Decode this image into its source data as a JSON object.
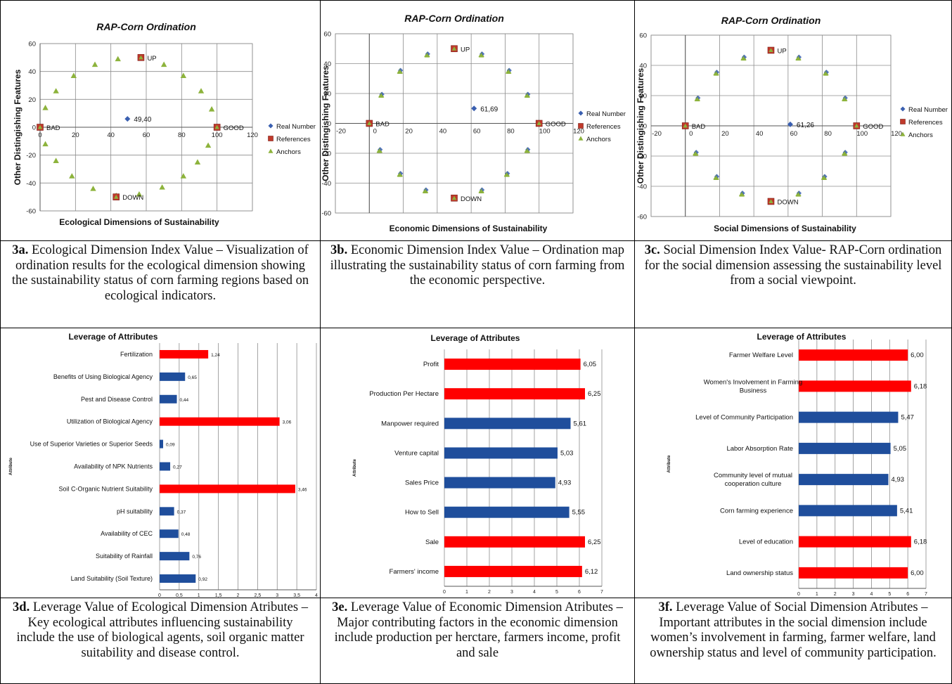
{
  "colors": {
    "real": "#3a5fb0",
    "references": "#c0392b",
    "anchors": "#8db33c",
    "bar_red": "#ff0000",
    "bar_blue": "#1f4e9c",
    "grid": "#8c8c8c"
  },
  "chart_data": [
    {
      "type": "scatter",
      "title": "RAP-Corn Ordination",
      "xlabel": "Ecological Dimensions of Sustainability",
      "ylabel": "Other Distingishing Features",
      "xlim": [
        0,
        120
      ],
      "ylim": [
        -60,
        60
      ],
      "x_ticks": [
        "0",
        "20",
        "40",
        "60",
        "80",
        "100",
        "120"
      ],
      "y_ticks": [
        "60",
        "40",
        "20",
        "0",
        "-20",
        "-40",
        "-60"
      ],
      "legend": [
        "Real Number",
        "References",
        "Anchors"
      ],
      "series": [
        {
          "name": "Real Number",
          "points": [
            {
              "x": 49.4,
              "y": 6,
              "label": "49,40"
            }
          ]
        },
        {
          "name": "References",
          "points": [
            {
              "x": 0,
              "y": 0,
              "label": "BAD"
            },
            {
              "x": 100,
              "y": 0,
              "label": "GOOD"
            },
            {
              "x": 57,
              "y": 50,
              "label": "UP"
            },
            {
              "x": 43,
              "y": -50,
              "label": "DOWN"
            }
          ]
        },
        {
          "name": "Anchors",
          "points": [
            {
              "x": 3,
              "y": 14
            },
            {
              "x": 9,
              "y": 26
            },
            {
              "x": 19,
              "y": 37
            },
            {
              "x": 31,
              "y": 45
            },
            {
              "x": 44,
              "y": 49
            },
            {
              "x": 57,
              "y": 50
            },
            {
              "x": 70,
              "y": 45
            },
            {
              "x": 81,
              "y": 37
            },
            {
              "x": 91,
              "y": 26
            },
            {
              "x": 97,
              "y": 13
            },
            {
              "x": 100,
              "y": 0
            },
            {
              "x": 95,
              "y": -13
            },
            {
              "x": 89,
              "y": -25
            },
            {
              "x": 81,
              "y": -35
            },
            {
              "x": 69,
              "y": -43
            },
            {
              "x": 56,
              "y": -48
            },
            {
              "x": 43,
              "y": -49
            },
            {
              "x": 30,
              "y": -44
            },
            {
              "x": 18,
              "y": -35
            },
            {
              "x": 9,
              "y": -24
            },
            {
              "x": 3,
              "y": -12
            },
            {
              "x": 0,
              "y": 0
            }
          ]
        }
      ]
    },
    {
      "type": "scatter",
      "title": "RAP-Corn Ordination",
      "xlabel": "Economic Dimensions of Sustainability",
      "ylabel": "Other Distingishing Features",
      "xlim": [
        -20,
        120
      ],
      "ylim": [
        -60,
        60
      ],
      "x_ticks": [
        "-20",
        "0",
        "20",
        "40",
        "60",
        "80",
        "100",
        "120"
      ],
      "y_ticks": [
        "60",
        "40",
        "20",
        "0",
        "-20",
        "-40",
        "-60"
      ],
      "legend": [
        "Real Number",
        "References",
        "Anchors"
      ],
      "series": [
        {
          "name": "Real Number",
          "points": [
            {
              "x": 61.69,
              "y": 10,
              "label": "61,69"
            }
          ]
        },
        {
          "name": "References",
          "points": [
            {
              "x": 0,
              "y": 0,
              "label": "BAD"
            },
            {
              "x": 100,
              "y": 0,
              "label": "GOOD"
            },
            {
              "x": 50,
              "y": 50,
              "label": "UP"
            },
            {
              "x": 50,
              "y": -50,
              "label": "DOWN"
            }
          ]
        },
        {
          "name": "Anchors",
          "points": [
            {
              "x": 7,
              "y": 19
            },
            {
              "x": 18,
              "y": 35
            },
            {
              "x": 34,
              "y": 46
            },
            {
              "x": 50,
              "y": 50
            },
            {
              "x": 66,
              "y": 46
            },
            {
              "x": 82,
              "y": 35
            },
            {
              "x": 93,
              "y": 19
            },
            {
              "x": 100,
              "y": 0
            },
            {
              "x": 93,
              "y": -18
            },
            {
              "x": 81,
              "y": -34
            },
            {
              "x": 66,
              "y": -45
            },
            {
              "x": 50,
              "y": -50
            },
            {
              "x": 33,
              "y": -45
            },
            {
              "x": 18,
              "y": -34
            },
            {
              "x": 6,
              "y": -18
            },
            {
              "x": 0,
              "y": 0
            }
          ]
        }
      ]
    },
    {
      "type": "scatter",
      "title": "RAP-Corn Ordination",
      "xlabel": "Social Dimensions of Sustainability",
      "ylabel": "Other Distingishing Features",
      "xlim": [
        -20,
        120
      ],
      "ylim": [
        -60,
        60
      ],
      "x_ticks": [
        "-20",
        "0",
        "20",
        "40",
        "60",
        "80",
        "100",
        "120"
      ],
      "y_ticks": [
        "60",
        "40",
        "20",
        "0",
        "-20",
        "-40",
        "-60"
      ],
      "legend": [
        "Real Number",
        "References",
        "Anchors"
      ],
      "series": [
        {
          "name": "Real Number",
          "points": [
            {
              "x": 61.26,
              "y": 1,
              "label": "61,26"
            }
          ]
        },
        {
          "name": "References",
          "points": [
            {
              "x": 0,
              "y": 0,
              "label": "BAD"
            },
            {
              "x": 100,
              "y": 0,
              "label": "GOOD"
            },
            {
              "x": 50,
              "y": 50,
              "label": "UP"
            },
            {
              "x": 50,
              "y": -50,
              "label": "DOWN"
            }
          ]
        },
        {
          "name": "Anchors",
          "points": [
            {
              "x": 7,
              "y": 18
            },
            {
              "x": 18,
              "y": 35
            },
            {
              "x": 34,
              "y": 45
            },
            {
              "x": 50,
              "y": 50
            },
            {
              "x": 66,
              "y": 45
            },
            {
              "x": 82,
              "y": 35
            },
            {
              "x": 93,
              "y": 18
            },
            {
              "x": 100,
              "y": 0
            },
            {
              "x": 93,
              "y": -18
            },
            {
              "x": 81,
              "y": -34
            },
            {
              "x": 66,
              "y": -45
            },
            {
              "x": 50,
              "y": -50
            },
            {
              "x": 33,
              "y": -45
            },
            {
              "x": 18,
              "y": -34
            },
            {
              "x": 6,
              "y": -18
            },
            {
              "x": 0,
              "y": 0
            }
          ]
        }
      ]
    },
    {
      "type": "bar",
      "orientation": "horizontal",
      "title": "Leverage of Attributes",
      "ylabel": "Attribute",
      "xlim": [
        0,
        4
      ],
      "x_ticks": [
        "0",
        "0,5",
        "1",
        "1,5",
        "2",
        "2,5",
        "3",
        "3,5",
        "4"
      ],
      "categories": [
        "Fertilization",
        "Benefits of Using Biological Agency",
        "Pest and Disease Control",
        "Utilization of Biological Agency",
        "Use of Superior Varieties or Superior Seeds",
        "Availability of NPK Nutrients",
        "Soil C-Organic Nutrient Suitability",
        "pH suitability",
        "Availability of CEC",
        "Suitability of Rainfall",
        "Land Suitability (Soil Texture)"
      ],
      "values": [
        1.24,
        0.65,
        0.44,
        3.06,
        0.09,
        0.27,
        3.46,
        0.37,
        0.48,
        0.76,
        0.92
      ],
      "value_labels": [
        "1,24",
        "0,65",
        "0,44",
        "3,06",
        "0,09",
        "0,27",
        "3,46",
        "0,37",
        "0,48",
        "0,76",
        "0,92"
      ],
      "highlight": [
        true,
        false,
        false,
        true,
        false,
        false,
        true,
        false,
        false,
        false,
        false
      ]
    },
    {
      "type": "bar",
      "orientation": "horizontal",
      "title": "Leverage of Attributes",
      "ylabel": "Attribute",
      "xlim": [
        0,
        7
      ],
      "x_ticks": [
        "0",
        "1",
        "2",
        "3",
        "4",
        "5",
        "6",
        "7"
      ],
      "categories": [
        "Profit",
        "Production Per Hectare",
        "Manpower required",
        "Venture capital",
        "Sales Price",
        "How to Sell",
        "Sale",
        "Farmers' income"
      ],
      "values": [
        6.05,
        6.25,
        5.61,
        5.03,
        4.93,
        5.55,
        6.25,
        6.12
      ],
      "value_labels": [
        "6,05",
        "6,25",
        "5,61",
        "5,03",
        "4,93",
        "5,55",
        "6,25",
        "6,12"
      ],
      "highlight": [
        true,
        true,
        false,
        false,
        false,
        false,
        true,
        true
      ]
    },
    {
      "type": "bar",
      "orientation": "horizontal",
      "title": "Leverage of Attributes",
      "ylabel": "Attribute",
      "xlim": [
        0,
        7
      ],
      "x_ticks": [
        "0",
        "1",
        "2",
        "3",
        "4",
        "5",
        "6",
        "7"
      ],
      "categories": [
        "Farmer Welfare Level",
        "Women's Involvement in Farming Business",
        "Level of Community Participation",
        "Labor Absorption Rate",
        "Community level of mutual cooperation culture",
        "Corn farming experience",
        "Level of education",
        "Land ownership status"
      ],
      "values": [
        6.0,
        6.18,
        5.47,
        5.05,
        4.93,
        5.41,
        6.18,
        6.0
      ],
      "value_labels": [
        "6,00",
        "6,18",
        "5,47",
        "5,05",
        "4,93",
        "5,41",
        "6,18",
        "6,00"
      ],
      "highlight": [
        true,
        true,
        false,
        false,
        false,
        false,
        true,
        true
      ]
    }
  ],
  "captions": [
    {
      "id": "3a.",
      "text": " Ecological Dimension Index Value – Visualization of ordination results for the ecological dimension showing the sustainability status of corn farming regions based on ecological indicators."
    },
    {
      "id": "3b.",
      "text": " Economic Dimension Index Value – Ordination map illustrating the sustainability status of corn farming from the economic perspective."
    },
    {
      "id": "3c.",
      "text": " Social Dimension Index Value- RAP-Corn ordination for the social dimension assessing the sustainability level from a social viewpoint."
    },
    {
      "id": "3d.",
      "text": " Leverage Value of Ecological Dimension Atributes – Key ecological attributes influencing sustainability include the use of biological agents, soil organic matter suitability and disease control."
    },
    {
      "id": "3e.",
      "text": " Leverage Value of Economic Dimension Atributes – Major contributing factors in the economic dimension include production per herctare, farmers income, profit and sale"
    },
    {
      "id": "3f.",
      "text": " Leverage Value of Social Dimension Atributes – Important attributes in the social dimension include women’s involvement in farming, farmer welfare, land ownership status and level of community participation."
    }
  ]
}
